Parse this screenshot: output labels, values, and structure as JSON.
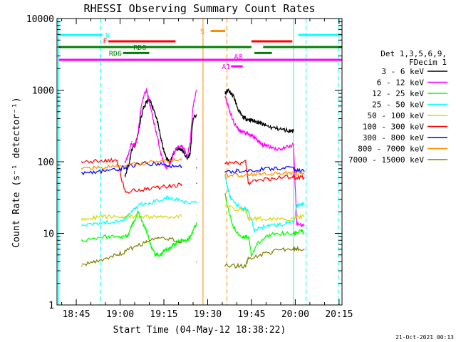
{
  "chart_data": {
    "type": "line",
    "title": "RHESSI Observing Summary Count Rates",
    "xlabel": "Start Time (04-May-12 18:38:22)",
    "ylabel": "Count Rate (s⁻¹ detector⁻¹)",
    "x_unit": "minutes of day (UT)",
    "xlim": [
      1118.4,
      1216.0
    ],
    "ylim": [
      1,
      10000
    ],
    "yscale": "log",
    "grid": false,
    "x_ticks": [
      {
        "value": 1125,
        "label": "18:45"
      },
      {
        "value": 1140,
        "label": "19:00"
      },
      {
        "value": 1155,
        "label": "19:15"
      },
      {
        "value": 1170,
        "label": "19:30"
      },
      {
        "value": 1185,
        "label": "19:45"
      },
      {
        "value": 1200,
        "label": "20:00"
      },
      {
        "value": 1215,
        "label": "20:15"
      }
    ],
    "y_ticks": [
      {
        "value": 1,
        "label": "1"
      },
      {
        "value": 10,
        "label": "10"
      },
      {
        "value": 100,
        "label": "100"
      },
      {
        "value": 1000,
        "label": "1000"
      },
      {
        "value": 10000,
        "label": "10000"
      }
    ],
    "legend": {
      "position": "right",
      "header": [
        "Det 1,3,5,6,9,",
        "FDecim 1"
      ],
      "entries": [
        {
          "label": "3 - 6 keV",
          "color": "#000000"
        },
        {
          "label": "6 - 12 keV",
          "color": "#ff00ff"
        },
        {
          "label": "12 - 25 keV",
          "color": "#00ff00"
        },
        {
          "label": "25 - 50 keV",
          "color": "#00ffff"
        },
        {
          "label": "50 - 100 keV",
          "color": "#d8d800"
        },
        {
          "label": "100 - 300 keV",
          "color": "#ff0000"
        },
        {
          "label": "300 - 800 keV",
          "color": "#0000ff"
        },
        {
          "label": "800 - 7000 keV",
          "color": "#ff8c00"
        },
        {
          "label": "7000 - 15000 keV",
          "color": "#808000"
        }
      ]
    },
    "series": [
      {
        "name": "3 - 6 keV",
        "color": "#000000",
        "x": [
          1141.7,
          1143,
          1144,
          1145,
          1146,
          1147,
          1148,
          1149,
          1150,
          1151,
          1152,
          1153,
          1154,
          1155,
          1156,
          1157,
          1158,
          1159,
          1160,
          1161,
          1162,
          1163,
          1164,
          1165,
          1166.2,
          1176,
          1177,
          1178,
          1179,
          1180,
          1181,
          1182,
          1183,
          1184,
          1185,
          1186,
          1187,
          1188,
          1189,
          1190,
          1192,
          1194,
          1196,
          1198,
          1199.4
        ],
        "y": [
          65,
          90,
          150,
          170,
          230,
          380,
          550,
          680,
          720,
          610,
          480,
          330,
          210,
          140,
          110,
          100,
          120,
          150,
          150,
          150,
          130,
          110,
          130,
          400,
          450,
          900,
          1000,
          900,
          800,
          600,
          480,
          420,
          400,
          390,
          380,
          370,
          360,
          350,
          330,
          320,
          300,
          290,
          280,
          270,
          270
        ]
      },
      {
        "name": "6 - 12 keV",
        "color": "#ff00ff",
        "x": [
          1141.7,
          1143,
          1144,
          1145,
          1146,
          1147,
          1148,
          1149,
          1150,
          1151,
          1152,
          1153,
          1154,
          1155,
          1156,
          1157,
          1158,
          1159,
          1160,
          1161,
          1162,
          1163,
          1164,
          1165,
          1166.2,
          1176,
          1177,
          1178,
          1179,
          1180,
          1181,
          1182,
          1183,
          1184,
          1185,
          1186,
          1187,
          1188,
          1189,
          1190,
          1192,
          1194,
          1196,
          1198,
          1199.4,
          1200.5,
          1202,
          1203
        ],
        "y": [
          100,
          130,
          190,
          160,
          220,
          500,
          800,
          1000,
          700,
          450,
          300,
          200,
          130,
          95,
          80,
          90,
          120,
          150,
          160,
          170,
          150,
          120,
          180,
          600,
          1000,
          800,
          600,
          450,
          350,
          300,
          270,
          260,
          250,
          240,
          230,
          220,
          200,
          180,
          170,
          170,
          160,
          150,
          155,
          165,
          170,
          14,
          13,
          13
        ]
      },
      {
        "name": "12 - 25 keV",
        "color": "#00ff00",
        "x": [
          1126.9,
          1131,
          1135,
          1139,
          1141.7,
          1143,
          1144,
          1145,
          1146,
          1147,
          1148,
          1149,
          1150,
          1151,
          1152,
          1153,
          1154,
          1155,
          1156,
          1157,
          1158,
          1159,
          1160,
          1161,
          1162,
          1163,
          1164,
          1165,
          1166.2,
          1176,
          1178,
          1180,
          1182,
          1183,
          1184,
          1185,
          1187,
          1190,
          1193,
          1196,
          1199.4,
          1200.5,
          1202,
          1203
        ],
        "y": [
          8,
          8.5,
          9,
          9,
          9,
          10,
          13,
          15,
          20,
          17,
          13,
          11,
          8,
          6,
          5,
          5,
          5,
          5.5,
          6,
          6,
          7,
          7,
          8,
          8,
          8,
          8,
          9,
          11,
          14,
          35,
          15,
          10,
          9,
          9,
          9,
          5,
          7,
          9,
          10,
          10,
          10,
          10,
          11,
          10
        ]
      },
      {
        "name": "25 - 50 keV",
        "color": "#00ffff",
        "x": [
          1126.9,
          1131,
          1135,
          1139,
          1141.7,
          1143,
          1145,
          1147,
          1150,
          1153,
          1156,
          1159,
          1162,
          1166.2,
          1176,
          1177,
          1178,
          1180,
          1182,
          1183,
          1184,
          1186,
          1188,
          1191,
          1194,
          1197,
          1199.4,
          1200.5,
          1202,
          1203
        ],
        "y": [
          13,
          14,
          14,
          15,
          16,
          18,
          22,
          25,
          26,
          29,
          31,
          30,
          28,
          27,
          60,
          40,
          30,
          25,
          22,
          22,
          20,
          11,
          12,
          13,
          13,
          14,
          14,
          24,
          26,
          25
        ]
      },
      {
        "name": "50 - 100 keV",
        "color": "#d8d800",
        "x": [
          1126.9,
          1131,
          1135,
          1139,
          1141.7,
          1145,
          1149,
          1153,
          1157,
          1161,
          1166.2,
          1176,
          1180,
          1183,
          1184,
          1187,
          1191,
          1195,
          1199.4,
          1200.5,
          1203
        ],
        "y": [
          16,
          16.5,
          17,
          17,
          17,
          17,
          17,
          17,
          17,
          17.5,
          18,
          24,
          22,
          21,
          16,
          16,
          16,
          16,
          16,
          17,
          17
        ]
      },
      {
        "name": "100 - 300 keV",
        "color": "#ff0000",
        "x": [
          1126.9,
          1131,
          1135,
          1139,
          1141.7,
          1145,
          1149,
          1153,
          1157,
          1161,
          1166.2,
          1176,
          1180,
          1183,
          1184,
          1187,
          1191,
          1195,
          1199.4,
          1200.5,
          1203
        ],
        "y": [
          100,
          102,
          103,
          104,
          38,
          40,
          42,
          44,
          46,
          48,
          50,
          95,
          96,
          98,
          50,
          55,
          58,
          60,
          62,
          60,
          60
        ]
      },
      {
        "name": "300 - 800 keV",
        "color": "#0000ff",
        "x": [
          1126.9,
          1131,
          1135,
          1139,
          1141.7,
          1145,
          1149,
          1153,
          1157,
          1161,
          1166.2,
          1176,
          1180,
          1184,
          1188,
          1192,
          1196,
          1199.4,
          1200.5,
          1203
        ],
        "y": [
          70,
          72,
          74,
          76,
          85,
          90,
          95,
          92,
          88,
          85,
          82,
          72,
          74,
          76,
          78,
          80,
          82,
          80,
          75,
          74
        ]
      },
      {
        "name": "800 - 7000 keV",
        "color": "#ff8c00",
        "x": [
          1126.9,
          1131,
          1135,
          1139,
          1141.7,
          1145,
          1149,
          1153,
          1157,
          1161,
          1166.2,
          1176,
          1180,
          1184,
          1188,
          1192,
          1196,
          1199.4,
          1200.5,
          1203
        ],
        "y": [
          80,
          82,
          84,
          86,
          88,
          92,
          96,
          100,
          104,
          106,
          108,
          65,
          66,
          67,
          68,
          69,
          70,
          70,
          68,
          68
        ]
      },
      {
        "name": "7000 - 15000 keV",
        "color": "#808000",
        "x": [
          1126.9,
          1131,
          1135,
          1139,
          1141.7,
          1145,
          1149,
          1153,
          1157,
          1161,
          1166.2,
          1176,
          1180,
          1183,
          1184,
          1188,
          1192,
          1196,
          1199.4,
          1200.5,
          1203
        ],
        "y": [
          3.5,
          4,
          4.5,
          5,
          5.5,
          6.5,
          7.5,
          8.5,
          8.5,
          7.5,
          4,
          3.5,
          3.5,
          3.5,
          4.5,
          5,
          5.5,
          6,
          6,
          6,
          6
        ]
      }
    ],
    "state_bars": [
      {
        "label": "S",
        "color": "#ff8c00",
        "y": 6700,
        "segments": [
          [
            1171,
            1176
          ]
        ]
      },
      {
        "label": "N",
        "color": "#00ffff",
        "y": 5900,
        "segments": [
          [
            1119,
            1134
          ],
          [
            1201,
            1216
          ]
        ]
      },
      {
        "label": "F",
        "color": "#ff0000",
        "y": 4800,
        "segments": [
          [
            1136,
            1159
          ],
          [
            1185,
            1199
          ]
        ]
      },
      {
        "label": "RD0",
        "color": "#008000",
        "y": 4000,
        "segments": [
          [
            1119,
            1185
          ],
          [
            1189,
            1216
          ]
        ]
      },
      {
        "label": "RD6",
        "color": "#008000",
        "y": 3300,
        "segments": [
          [
            1141,
            1150
          ],
          [
            1186,
            1192
          ]
        ]
      },
      {
        "label": "A0",
        "color": "#ff00ff",
        "y": 2650,
        "segments": [
          [
            1119,
            1216
          ]
        ]
      },
      {
        "label": "A1",
        "color": "#ff00ff",
        "y": 2150,
        "segments": [
          [
            1178,
            1182
          ]
        ]
      }
    ],
    "vertical_lines": [
      {
        "x": 1119.0,
        "color": "#00ffff",
        "style": "solid"
      },
      {
        "x": 1133.4,
        "color": "#00ffff",
        "style": "dashed"
      },
      {
        "x": 1168.4,
        "color": "#ff8c00",
        "style": "solid"
      },
      {
        "x": 1176.6,
        "color": "#ff8c00",
        "style": "dashed"
      },
      {
        "x": 1199.4,
        "color": "#00ffff",
        "style": "solid"
      },
      {
        "x": 1203.7,
        "color": "#00ffff",
        "style": "dashed"
      },
      {
        "x": 1214.8,
        "color": "#00ffff",
        "style": "dashed"
      }
    ],
    "footer": "21-Oct-2021 00:13"
  }
}
